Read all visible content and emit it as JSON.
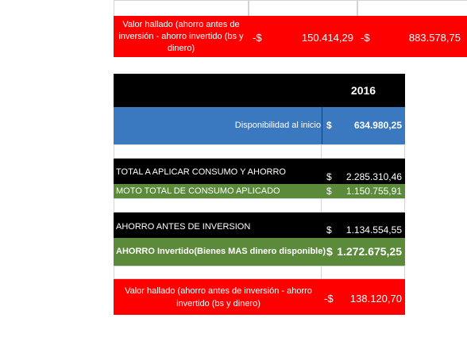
{
  "top_row": {
    "label": "Valor hallado (ahorro antes de inversión - ahorro invertido (bs y dinero)",
    "cells": [
      {
        "sign": "-$",
        "value": "150.414,29"
      },
      {
        "sign": "-$",
        "value": "883.578,75"
      }
    ]
  },
  "header": {
    "year": "2016"
  },
  "rows": [
    {
      "label": "Disponibilidad al inicio",
      "sign": "$",
      "value": "634.980,25"
    },
    {
      "label": "TOTAL A APLICAR CONSUMO Y AHORRO",
      "sign": "$",
      "value": "2.285.310,46"
    },
    {
      "label": "MOTO TOTAL DE CONSUMO APLICADO",
      "sign": "$",
      "value": "1.150.755,91"
    },
    {
      "label": "AHORRO ANTES DE INVERSION",
      "sign": "$",
      "value": "1.134.554,55"
    },
    {
      "label": "AHORRO Invertido(Bienes MAS dinero disponible)",
      "sign": "$",
      "value": "1.272.675,25"
    },
    {
      "label": "Valor hallado (ahorro antes de inversión - ahorro invertido (bs y dinero)",
      "sign": "-$",
      "value": "138.120,70"
    }
  ]
}
